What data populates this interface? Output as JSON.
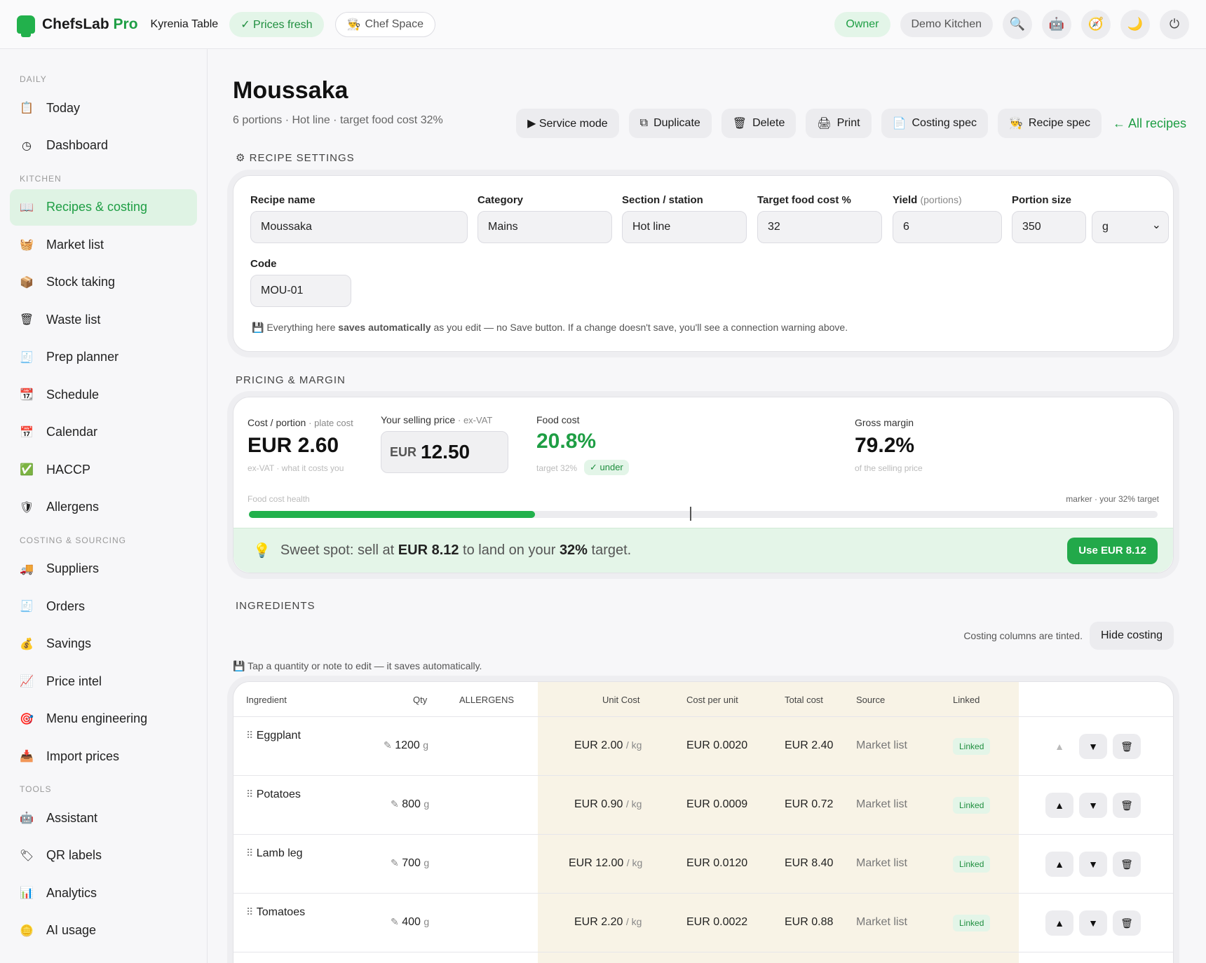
{
  "topbar": {
    "brand": "ChefsLab",
    "brand_suffix": "Pro",
    "venue": "Kyrenia Table",
    "prices_status": "✓ Prices fresh",
    "chef_space": "Chef Space",
    "role": "Owner",
    "kitchen": "Demo Kitchen",
    "icons": [
      "search-icon",
      "robot-icon",
      "compass-icon",
      "moon-icon",
      "power-icon"
    ]
  },
  "sidebar": {
    "sections": [
      {
        "label": "DAILY",
        "items": [
          {
            "label": "Today",
            "icon": "clipboard-icon"
          },
          {
            "label": "Dashboard",
            "icon": "clock-icon"
          }
        ]
      },
      {
        "label": "KITCHEN",
        "items": [
          {
            "label": "Recipes & costing",
            "icon": "book-icon",
            "active": true
          },
          {
            "label": "Market list",
            "icon": "basket-icon"
          },
          {
            "label": "Stock taking",
            "icon": "box-icon"
          },
          {
            "label": "Waste list",
            "icon": "trash-bin-icon"
          },
          {
            "label": "Prep planner",
            "icon": "planner-icon"
          },
          {
            "label": "Schedule",
            "icon": "schedule-icon"
          },
          {
            "label": "Calendar",
            "icon": "calendar-icon"
          },
          {
            "label": "HACCP",
            "icon": "check-box-icon"
          },
          {
            "label": "Allergens",
            "icon": "shield-icon"
          }
        ]
      },
      {
        "label": "COSTING & SOURCING",
        "items": [
          {
            "label": "Suppliers",
            "icon": "truck-icon"
          },
          {
            "label": "Orders",
            "icon": "receipt-icon"
          },
          {
            "label": "Savings",
            "icon": "money-bag-icon"
          },
          {
            "label": "Price intel",
            "icon": "chart-up-icon"
          },
          {
            "label": "Menu engineering",
            "icon": "target-icon"
          },
          {
            "label": "Import prices",
            "icon": "inbox-icon"
          }
        ]
      },
      {
        "label": "TOOLS",
        "items": [
          {
            "label": "Assistant",
            "icon": "robot-icon"
          },
          {
            "label": "QR labels",
            "icon": "tag-icon"
          },
          {
            "label": "Analytics",
            "icon": "bar-chart-icon"
          },
          {
            "label": "AI usage",
            "icon": "coin-icon"
          }
        ]
      }
    ]
  },
  "recipe": {
    "title": "Moussaka",
    "subtitle": "6 portions · Hot line · target food cost 32%",
    "actions": {
      "service_mode": "▶ Service mode",
      "duplicate": "Duplicate",
      "delete": "Delete",
      "print": "Print",
      "costing_spec": "Costing spec",
      "recipe_spec": "Recipe spec",
      "all_recipes": "← All recipes"
    }
  },
  "settings": {
    "section_label": "RECIPE SETTINGS",
    "recipe_name_label": "Recipe name",
    "recipe_name": "Moussaka",
    "category_label": "Category",
    "category": "Mains",
    "section_label_field": "Section / station",
    "section": "Hot line",
    "target_label": "Target food cost %",
    "target": "32",
    "yield_label": "Yield",
    "yield_unit_label": "(portions)",
    "yield": "6",
    "portion_label": "Portion size",
    "portion_size": "350",
    "portion_unit": "g",
    "code_label": "Code",
    "code": "MOU-01",
    "autosave_prefix": "Everything here ",
    "autosave_bold": "saves automatically",
    "autosave_suffix": " as you edit — no Save button. If a change doesn't save, you'll see a connection warning above."
  },
  "pricing": {
    "section_label": "PRICING & MARGIN",
    "cost_label": "Cost / portion",
    "cost_label_light": "· plate cost",
    "cost_value": "EUR 2.60",
    "cost_note": "ex-VAT · what it costs you",
    "sell_label": "Your selling price",
    "sell_label_light": "· ex-VAT",
    "sell_currency": "EUR",
    "sell_value": "12.50",
    "food_cost_label": "Food cost",
    "food_cost_value": "20.8%",
    "food_cost_note": "target 32%",
    "under_badge": "✓ under",
    "margin_label": "Gross margin",
    "margin_value": "79.2%",
    "margin_note": "of the selling price",
    "health_label": "Food cost health",
    "health_marker_label": "marker · your 32% target",
    "health_fill_percent": 31.5,
    "health_marker_percent": 48.5,
    "sweet_prefix": "Sweet spot: sell at ",
    "sweet_price": "EUR 8.12",
    "sweet_mid": " to land on your ",
    "sweet_target": "32%",
    "sweet_suffix": " target.",
    "use_button": "Use EUR 8.12"
  },
  "ingredients": {
    "section_label": "INGREDIENTS",
    "tint_note": "Costing columns are tinted.",
    "hide_button": "Hide costing",
    "tap_note": "Tap a quantity or note to edit — it saves automatically.",
    "columns": [
      "Ingredient",
      "Qty",
      "ALLERGENS",
      "Unit Cost",
      "Cost per unit",
      "Total cost",
      "Source",
      "Linked"
    ],
    "rows": [
      {
        "name": "Eggplant",
        "qty": "1200",
        "unit": "g",
        "unit_cost": "EUR 2.00",
        "per": "/ kg",
        "cost_per_unit": "EUR 0.0020",
        "total": "EUR 2.40",
        "source": "Market list",
        "linked": "Linked"
      },
      {
        "name": "Potatoes",
        "qty": "800",
        "unit": "g",
        "unit_cost": "EUR 0.90",
        "per": "/ kg",
        "cost_per_unit": "EUR 0.0009",
        "total": "EUR 0.72",
        "source": "Market list",
        "linked": "Linked"
      },
      {
        "name": "Lamb leg",
        "qty": "700",
        "unit": "g",
        "unit_cost": "EUR 12.00",
        "per": "/ kg",
        "cost_per_unit": "EUR 0.0120",
        "total": "EUR 8.40",
        "source": "Market list",
        "linked": "Linked"
      },
      {
        "name": "Tomatoes",
        "qty": "400",
        "unit": "g",
        "unit_cost": "EUR 2.20",
        "per": "/ kg",
        "cost_per_unit": "EUR 0.0022",
        "total": "EUR 0.88",
        "source": "Market list",
        "linked": "Linked"
      }
    ]
  }
}
